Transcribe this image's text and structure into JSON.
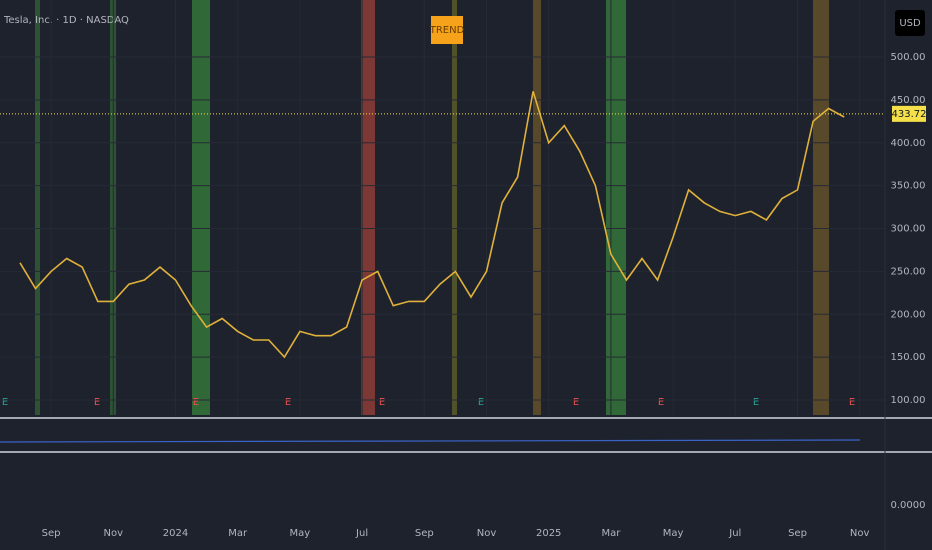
{
  "chart_data": {
    "type": "line",
    "title": "Tesla, Inc. · 1D · NASDAQ",
    "currency": "USD",
    "annotation": "TREND",
    "earnings_label": "E",
    "lower_pane_tick_label": "0.0000",
    "color": "#e0b13a",
    "grid": true,
    "categories": [
      null,
      null,
      "Sep",
      null,
      null,
      null,
      "Nov",
      null,
      null,
      null,
      "2024",
      null,
      null,
      null,
      "Mar",
      null,
      null,
      null,
      "May",
      null,
      null,
      null,
      "Jul",
      null,
      null,
      null,
      "Sep",
      null,
      null,
      null,
      "Nov",
      null,
      null,
      null,
      "2025",
      null,
      null,
      null,
      "Mar",
      null,
      null,
      null,
      "May",
      null,
      null,
      null,
      "Jul",
      null,
      null,
      null,
      "Sep",
      null,
      null,
      null,
      "Nov"
    ],
    "values": [
      260,
      230,
      250,
      265,
      255,
      215,
      215,
      235,
      240,
      255,
      240,
      210,
      185,
      195,
      180,
      170,
      170,
      150,
      180,
      175,
      175,
      185,
      240,
      250,
      210,
      215,
      215,
      235,
      250,
      220,
      250,
      330,
      360,
      460,
      400,
      420,
      390,
      350,
      270,
      240,
      265,
      240,
      290,
      345,
      330,
      320,
      315,
      320,
      310,
      335,
      345,
      425,
      440,
      430,
      null
    ],
    "last_price": 433.72,
    "ylim": [
      82.5,
      566.5
    ],
    "yticks": [
      {
        "value": 100,
        "label": "100.00"
      },
      {
        "value": 150,
        "label": "150.00"
      },
      {
        "value": 200,
        "label": "200.00"
      },
      {
        "value": 250,
        "label": "250.00"
      },
      {
        "value": 300,
        "label": "300.00"
      },
      {
        "value": 350,
        "label": "350.00"
      },
      {
        "value": 400,
        "label": "400.00"
      },
      {
        "value": 450,
        "label": "450.00"
      },
      {
        "value": 500,
        "label": "500.00"
      }
    ]
  }
}
